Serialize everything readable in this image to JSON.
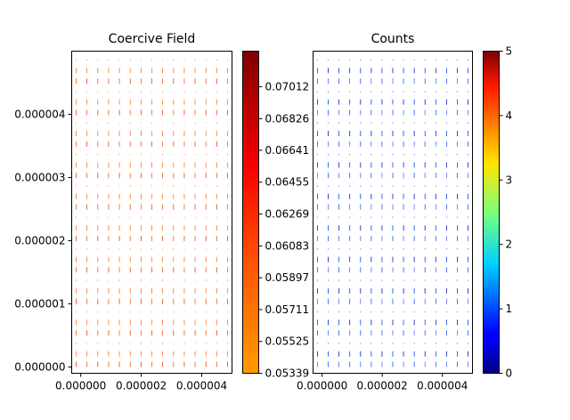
{
  "chart_data": [
    {
      "type": "heatmap",
      "title": "Coercive Field",
      "xlabel": "",
      "ylabel": "",
      "xlim": [
        -3e-07,
        5e-06
      ],
      "ylim": [
        -1e-07,
        5e-06
      ],
      "x_ticks": [
        0,
        2e-06,
        4e-06
      ],
      "x_tick_labels": [
        "0.000000",
        "0.000002",
        "0.000004"
      ],
      "y_ticks": [
        0,
        1e-06,
        2e-06,
        3e-06,
        4e-06
      ],
      "y_tick_labels": [
        "0.000000",
        "0.000001",
        "0.000002",
        "0.000003",
        "0.000004"
      ],
      "colorbar": {
        "cmap": "autumn-hot",
        "min": 0.05339,
        "max": 0.0722,
        "ticks": [
          0.05339,
          0.05525,
          0.05711,
          0.05897,
          0.06083,
          0.06269,
          0.06455,
          0.06641,
          0.06826,
          0.07012
        ],
        "tick_labels": [
          "0.05339",
          "0.05525",
          "0.05711",
          "0.05897",
          "0.06083",
          "0.06269",
          "0.06455",
          "0.06641",
          "0.06826",
          "0.07012"
        ]
      },
      "glyphs": "small vertical line segments on a regular grid, colored by value"
    },
    {
      "type": "heatmap",
      "title": "Counts",
      "xlabel": "",
      "ylabel": "",
      "xlim": [
        -3e-07,
        5e-06
      ],
      "ylim": [
        -1e-07,
        5e-06
      ],
      "x_ticks": [
        0,
        2e-06,
        4e-06
      ],
      "x_tick_labels": [
        "0.000000",
        "0.000002",
        "0.000004"
      ],
      "colorbar": {
        "cmap": "jet",
        "min": 0,
        "max": 5,
        "ticks": [
          0,
          1,
          2,
          3,
          4,
          5
        ],
        "tick_labels": [
          "0",
          "1",
          "2",
          "3",
          "4",
          "5"
        ]
      },
      "glyphs": "small vertical line segments on a regular grid, colored by value"
    }
  ]
}
